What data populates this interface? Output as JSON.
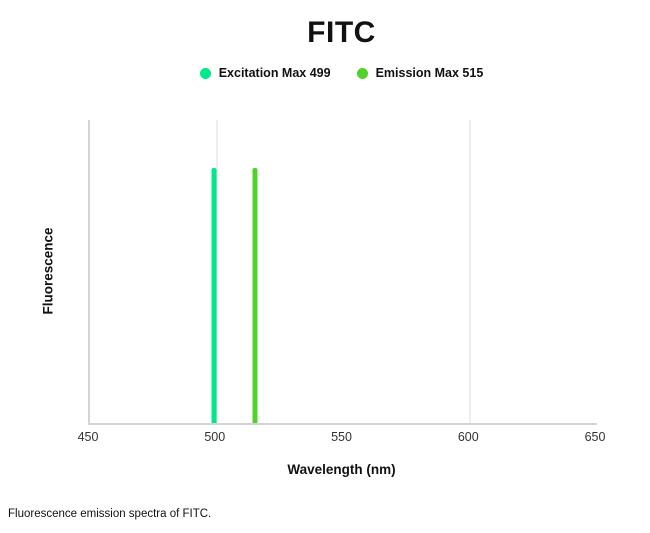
{
  "page": {
    "caption": "Fluorescence emission spectra of FITC."
  },
  "chart_data": {
    "type": "bar",
    "subtype": "spectral-peak-lines",
    "title": "FITC",
    "xlabel": "Wavelength (nm)",
    "ylabel": "Fluorescence",
    "xlim": [
      450,
      650
    ],
    "x_ticks": [
      450,
      500,
      550,
      600,
      650
    ],
    "gridlines": [
      500,
      600
    ],
    "y_axis_ticks": "none",
    "legend_position": "top-center",
    "series": [
      {
        "name": "Excitation Max 499",
        "x": 499,
        "peak_fraction": 0.84,
        "color": "#00E88C"
      },
      {
        "name": "Emission Max 515",
        "x": 515,
        "peak_fraction": 0.84,
        "color": "#4FD32B"
      }
    ]
  }
}
